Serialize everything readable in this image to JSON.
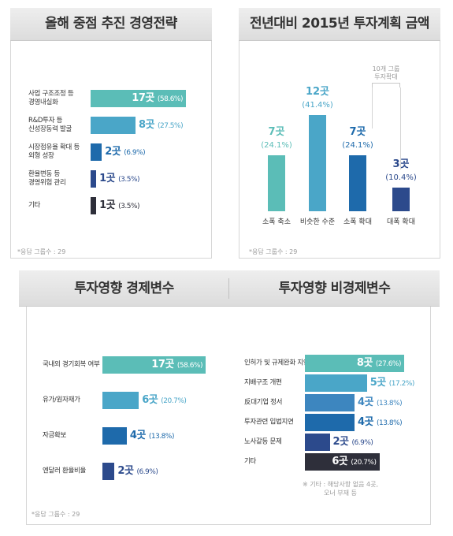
{
  "panels": {
    "p1": {
      "title": "올해 중점 추진 경영전략",
      "note": "*응답 그룹수 : 29"
    },
    "p2": {
      "title": "전년대비 2015년 투자계획 금액",
      "note": "*응답 그룹수 : 29",
      "bracket_note": "10개 그룹\n투자확대"
    },
    "p3": {
      "title": "투자영향 경제변수",
      "note": "*응답 그룹수 : 29"
    },
    "p4": {
      "title": "투자영향 비경제변수",
      "footnote": "※ 기타 : 해당사항 없음 4곳,\n오너 부재 등"
    }
  },
  "colors": {
    "teal": "#5bbdb7",
    "mid_blue": "#4aa6c8",
    "steel_blue": "#3d86bf",
    "blue": "#1e6aab",
    "navy": "#2c4a8c",
    "dark": "#2e2f3a"
  },
  "chart_data": [
    {
      "type": "bar",
      "orientation": "horizontal",
      "title": "올해 중점 추진 경영전략",
      "categories": [
        "사업 구조조정 등\n경영내실화",
        "R&D투자 등\n신성장동력 발굴",
        "시장점유율 확대 등\n외형 성장",
        "환율변동 등\n경영위험 관리",
        "기타"
      ],
      "values": [
        17,
        8,
        2,
        1,
        1
      ],
      "value_labels": [
        "17곳",
        "8곳",
        "2곳",
        "1곳",
        "1곳"
      ],
      "percent_labels": [
        "(58.6%)",
        "(27.5%)",
        "(6.9%)",
        "(3.5%)",
        "(3.5%)"
      ],
      "colors": [
        "#5bbdb7",
        "#4aa6c8",
        "#1e6aab",
        "#2c4a8c",
        "#2e2f3a"
      ]
    },
    {
      "type": "bar",
      "orientation": "vertical",
      "title": "전년대비 2015년 투자계획 금액",
      "categories": [
        "소폭 축소",
        "비슷한 수준",
        "소폭 확대",
        "대폭 확대"
      ],
      "values": [
        7,
        12,
        7,
        3
      ],
      "value_labels": [
        "7곳",
        "12곳",
        "7곳",
        "3곳"
      ],
      "percent_labels": [
        "(24.1%)",
        "(41.4%)",
        "(24.1%)",
        "(10.4%)"
      ],
      "colors": [
        "#5bbdb7",
        "#4aa6c8",
        "#1e6aab",
        "#2c4a8c"
      ]
    },
    {
      "type": "bar",
      "orientation": "horizontal",
      "title": "투자영향 경제변수",
      "categories": [
        "국내외 경기회복 여부",
        "유가/원자재가",
        "자금확보",
        "엔달러 환율비율"
      ],
      "values": [
        17,
        6,
        4,
        2
      ],
      "value_labels": [
        "17곳",
        "6곳",
        "4곳",
        "2곳"
      ],
      "percent_labels": [
        "(58.6%)",
        "(20.7%)",
        "(13.8%)",
        "(6.9%)"
      ],
      "colors": [
        "#5bbdb7",
        "#4aa6c8",
        "#1e6aab",
        "#2c4a8c"
      ]
    },
    {
      "type": "bar",
      "orientation": "horizontal",
      "title": "투자영향 비경제변수",
      "categories": [
        "인허가 및 규제완화 지연",
        "지배구조 개편",
        "反대기업 정서",
        "투자관련 입법지연",
        "노사갈등 문제",
        "기타"
      ],
      "values": [
        8,
        5,
        4,
        4,
        2,
        6
      ],
      "value_labels": [
        "8곳",
        "5곳",
        "4곳",
        "4곳",
        "2곳",
        "6곳"
      ],
      "percent_labels": [
        "(27.6%)",
        "(17.2%)",
        "(13.8%)",
        "(13.8%)",
        "(6.9%)",
        "(20.7%)"
      ],
      "colors": [
        "#5bbdb7",
        "#4aa6c8",
        "#3d86bf",
        "#1e6aab",
        "#2c4a8c",
        "#2e2f3a"
      ]
    }
  ]
}
